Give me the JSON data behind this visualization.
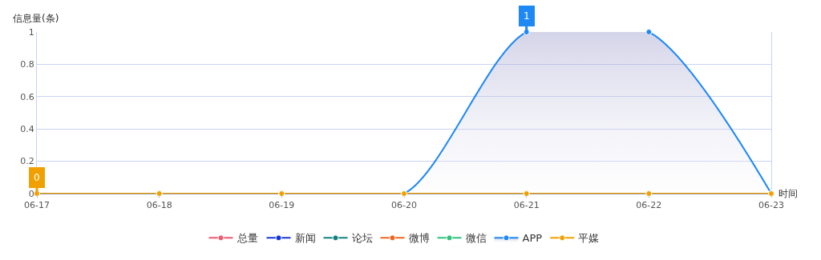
{
  "chart_data": {
    "type": "line",
    "ylabel": "信息量(条)",
    "xlabel": "时间",
    "categories": [
      "06-17",
      "06-18",
      "06-19",
      "06-20",
      "06-21",
      "06-22",
      "06-23"
    ],
    "series": [
      {
        "name": "总量",
        "color": "#ee5a6f",
        "values": [
          null,
          null,
          null,
          null,
          null,
          null,
          null
        ]
      },
      {
        "name": "新闻",
        "color": "#1536d6",
        "values": [
          null,
          null,
          null,
          null,
          null,
          null,
          null
        ]
      },
      {
        "name": "论坛",
        "color": "#12807f",
        "values": [
          null,
          null,
          null,
          null,
          null,
          null,
          null
        ]
      },
      {
        "name": "微博",
        "color": "#f0641e",
        "values": [
          null,
          null,
          null,
          null,
          null,
          null,
          null
        ]
      },
      {
        "name": "微信",
        "color": "#2ec27e",
        "values": [
          null,
          null,
          null,
          null,
          null,
          null,
          null
        ]
      },
      {
        "name": "APP",
        "color": "#1e88f5",
        "type": "area",
        "values": [
          0,
          0,
          0,
          0,
          1,
          1,
          0
        ]
      },
      {
        "name": "平媒",
        "color": "#f0a000",
        "values": [
          0,
          0,
          0,
          0,
          0,
          0,
          0
        ]
      }
    ],
    "ylim": [
      0,
      1
    ],
    "yticks": [
      0,
      0.2,
      0.4,
      0.6,
      0.8,
      1
    ],
    "grid": "y",
    "legend": "bottom",
    "marker": "circle",
    "line_style": "solid",
    "annotations": [
      {
        "text": "1",
        "x": "06-21",
        "y": 1
      },
      {
        "text": "0",
        "x": "06-17",
        "y": 0
      }
    ]
  }
}
